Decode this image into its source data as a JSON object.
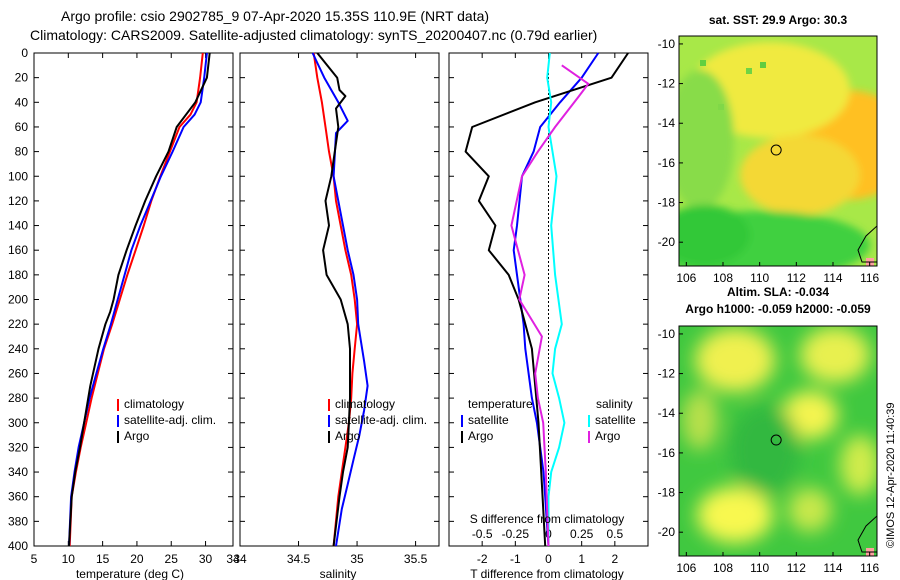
{
  "title_line1": "Argo profile: csio 2902785_9 07-Apr-2020 15.35S 110.9E (NRT data)",
  "title_line2": "Climatology: CARS2009. Satellite-adjusted climatology: synTS_20200407.nc (0.79d earlier)",
  "watermark": "©IMOS 12-Apr-2020 11:40:39",
  "chart_data": [
    {
      "id": "temp",
      "type": "line",
      "xlabel": "temperature (deg C)",
      "xlim": [
        5,
        34
      ],
      "ylim": [
        0,
        400
      ],
      "xticks": [
        "5",
        "10",
        "15",
        "20",
        "25",
        "30",
        "34"
      ],
      "yticks": [
        "0",
        "20",
        "40",
        "60",
        "80",
        "100",
        "120",
        "140",
        "160",
        "180",
        "200",
        "220",
        "240",
        "260",
        "280",
        "300",
        "320",
        "340",
        "360",
        "380",
        "400"
      ],
      "series": [
        {
          "name": "climatology",
          "color": "#ff0000",
          "x": [
            29.6,
            29.2,
            28.7,
            27.8,
            26.2,
            24.8,
            23.4,
            22.1,
            21.0,
            19.8,
            18.6,
            17.5,
            16.4,
            15.2,
            14.3,
            13.4,
            12.6,
            11.8,
            11.1,
            10.5,
            10.2
          ],
          "y": [
            0,
            20,
            40,
            50,
            60,
            80,
            100,
            120,
            140,
            160,
            180,
            200,
            220,
            240,
            260,
            280,
            300,
            320,
            340,
            360,
            400
          ]
        },
        {
          "name": "satellite-adj. clim.",
          "color": "#0000ff",
          "x": [
            30.2,
            29.8,
            29.3,
            28.4,
            26.8,
            25.2,
            23.5,
            22.0,
            20.5,
            19.2,
            18.2,
            17.2,
            16.2,
            15.1,
            14.1,
            13.1,
            12.3,
            11.5,
            10.9,
            10.4,
            10.1
          ],
          "y": [
            0,
            20,
            40,
            50,
            60,
            80,
            100,
            120,
            140,
            160,
            180,
            200,
            220,
            240,
            260,
            280,
            300,
            320,
            340,
            360,
            400
          ]
        },
        {
          "name": "Argo",
          "color": "#000000",
          "x": [
            30.6,
            30.2,
            28.5,
            25.8,
            24.6,
            22.8,
            21.2,
            19.8,
            18.5,
            17.3,
            16.6,
            16.1,
            15.4,
            14.4,
            13.2,
            12.3,
            11.7,
            11.0,
            10.5,
            10.1
          ],
          "y": [
            0,
            20,
            40,
            60,
            80,
            100,
            120,
            140,
            160,
            180,
            200,
            210,
            220,
            240,
            270,
            300,
            320,
            340,
            360,
            400
          ]
        }
      ],
      "legend": [
        "climatology",
        "satellite-adj. clim.",
        "Argo"
      ]
    },
    {
      "id": "sal",
      "type": "line",
      "xlabel": "salinity",
      "xlim": [
        34,
        35.7
      ],
      "ylim": [
        0,
        400
      ],
      "xticks": [
        "34",
        "34.5",
        "35",
        "35.5"
      ],
      "series": [
        {
          "name": "climatology",
          "color": "#ff0000",
          "x": [
            34.63,
            34.66,
            34.7,
            34.73,
            34.76,
            34.8,
            34.82,
            34.86,
            34.9,
            34.95,
            34.98,
            35.0,
            34.98,
            34.96,
            34.95,
            34.93,
            34.9,
            34.87,
            34.84,
            34.8
          ],
          "y": [
            0,
            20,
            40,
            60,
            80,
            100,
            120,
            140,
            160,
            180,
            200,
            220,
            240,
            260,
            280,
            300,
            320,
            340,
            360,
            400
          ]
        },
        {
          "name": "satellite-adj. clim.",
          "color": "#0000ff",
          "x": [
            34.62,
            34.72,
            34.84,
            34.92,
            34.82,
            34.8,
            34.84,
            34.88,
            34.92,
            34.97,
            35.0,
            35.01,
            35.06,
            35.09,
            35.06,
            35.02,
            34.97,
            34.92,
            34.87,
            34.82
          ],
          "y": [
            0,
            20,
            40,
            55,
            65,
            100,
            120,
            140,
            160,
            180,
            200,
            220,
            250,
            270,
            290,
            310,
            330,
            350,
            370,
            400
          ]
        },
        {
          "name": "Argo",
          "color": "#000000",
          "x": [
            34.66,
            34.83,
            34.85,
            34.9,
            34.82,
            34.84,
            34.78,
            34.73,
            34.76,
            34.71,
            34.74,
            34.86,
            34.92,
            34.94,
            34.94,
            34.93,
            34.92,
            34.88,
            34.85,
            34.8
          ],
          "y": [
            0,
            20,
            30,
            35,
            45,
            60,
            100,
            120,
            140,
            160,
            180,
            200,
            220,
            240,
            280,
            300,
            320,
            340,
            360,
            400
          ]
        }
      ],
      "legend": [
        "climatology",
        "satellite-adj. clim.",
        "Argo"
      ]
    },
    {
      "id": "diff",
      "type": "line",
      "xlabel": "T difference from climatology",
      "top_axis_label": "S difference from climatology",
      "xlim": [
        -3,
        3
      ],
      "ylim": [
        0,
        400
      ],
      "xticks": [
        "-2",
        "-1",
        "0",
        "1",
        "2"
      ],
      "top_xticks": [
        "-0.5",
        "-0.25",
        "0",
        "0.25",
        "0.5"
      ],
      "legend_temperature_header": "temperature",
      "legend_salinity_header": "salinity",
      "series": [
        {
          "name": "satellite",
          "group": "temperature",
          "color": "#0000ff",
          "x": [
            1.5,
            1.0,
            0.35,
            -0.25,
            -0.45,
            -0.8,
            -0.95,
            -1.05,
            -0.95,
            -0.85,
            -0.75,
            -0.7,
            -0.6,
            -0.5,
            -0.35,
            -0.25,
            -0.15,
            -0.1,
            -0.05,
            0.0
          ],
          "y": [
            0,
            20,
            40,
            60,
            80,
            100,
            140,
            160,
            180,
            200,
            220,
            240,
            260,
            280,
            300,
            320,
            340,
            360,
            380,
            400
          ]
        },
        {
          "name": "Argo",
          "group": "temperature",
          "color": "#000000",
          "x": [
            2.4,
            1.9,
            -0.4,
            -2.3,
            -2.5,
            -1.8,
            -2.1,
            -1.6,
            -1.8,
            -1.2,
            -0.9,
            -0.8,
            -0.5,
            -0.4,
            -0.3,
            -0.2,
            -0.1
          ],
          "y": [
            0,
            20,
            40,
            60,
            80,
            100,
            120,
            140,
            160,
            180,
            200,
            210,
            240,
            270,
            300,
            350,
            400
          ]
        },
        {
          "name": "satellite",
          "group": "salinity",
          "color": "#00ffff",
          "x": [
            0.01,
            -0.01,
            0.02,
            0.0,
            0.03,
            0.06,
            0.02,
            0.05,
            0.1,
            0.05,
            0.03,
            0.08,
            0.12,
            0.08,
            0.02,
            0.0,
            0.0
          ],
          "y": [
            0,
            20,
            40,
            60,
            80,
            100,
            140,
            180,
            220,
            240,
            260,
            280,
            300,
            320,
            340,
            360,
            400
          ]
        },
        {
          "name": "Argo",
          "group": "salinity",
          "color": "#e020e0",
          "x": [
            0.1,
            0.3,
            0.23,
            0.05,
            -0.08,
            -0.2,
            -0.28,
            -0.18,
            -0.22,
            -0.05,
            -0.1,
            -0.08,
            -0.04,
            -0.02,
            0.0
          ],
          "y": [
            10,
            25,
            35,
            60,
            80,
            100,
            140,
            180,
            200,
            230,
            260,
            280,
            300,
            340,
            400
          ]
        }
      ],
      "legend_temperature": [
        "satellite",
        "Argo"
      ],
      "legend_salinity": [
        "satellite",
        "Argo"
      ]
    },
    {
      "id": "sst_map",
      "type": "heatmap",
      "title": "sat. SST: 29.9 Argo: 30.3",
      "xlim": [
        105.6,
        116.4
      ],
      "ylim": [
        -21.2,
        -9.6
      ],
      "xticks": [
        "106",
        "108",
        "110",
        "112",
        "114",
        "116"
      ],
      "yticks": [
        "-10",
        "-12",
        "-14",
        "-16",
        "-18",
        "-20"
      ],
      "float_position": {
        "lon": 110.9,
        "lat": -15.35
      },
      "colors": {
        "warm": "#ffc020",
        "mid": "#ffff40",
        "cool": "#40d040"
      }
    },
    {
      "id": "sla_map",
      "type": "heatmap",
      "title_line1": "Altim. SLA: -0.034",
      "title_line2": "Argo h1000: -0.059 h2000: -0.059",
      "xlim": [
        105.6,
        116.4
      ],
      "ylim": [
        -21.2,
        -9.6
      ],
      "xticks": [
        "106",
        "108",
        "110",
        "112",
        "114",
        "116"
      ],
      "yticks": [
        "-10",
        "-12",
        "-14",
        "-16",
        "-18",
        "-20"
      ],
      "float_position": {
        "lon": 110.9,
        "lat": -15.35
      },
      "colors": {
        "high": "#ffff60",
        "low": "#30c040"
      }
    }
  ]
}
